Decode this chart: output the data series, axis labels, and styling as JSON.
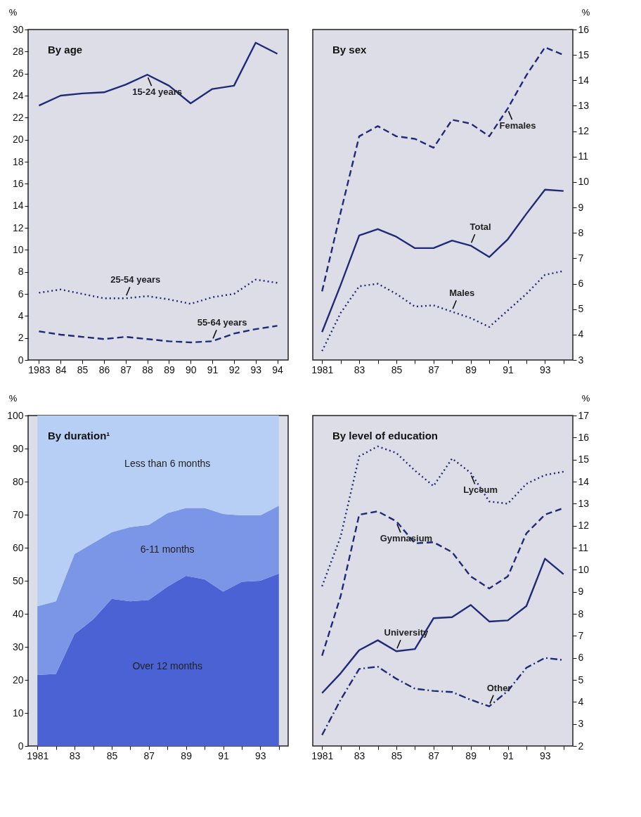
{
  "chart_data": [
    {
      "type": "line",
      "title": "By age",
      "ylabel": "%",
      "categories": [
        "1983",
        "84",
        "85",
        "86",
        "87",
        "88",
        "89",
        "90",
        "91",
        "92",
        "93",
        "94"
      ],
      "ylim": [
        0,
        30
      ],
      "yticks": [
        0,
        2,
        4,
        6,
        8,
        10,
        12,
        14,
        16,
        18,
        20,
        22,
        24,
        26,
        28,
        30
      ],
      "grid": false,
      "series": [
        {
          "name": "15-24 years",
          "color": "#1f2a78",
          "line_style": "solid",
          "values": [
            23.1,
            24.0,
            24.2,
            24.3,
            25.0,
            25.9,
            24.9,
            23.3,
            24.6,
            24.9,
            28.8,
            27.8
          ]
        },
        {
          "name": "25-54 years",
          "color": "#1f2a78",
          "line_style": "dotted",
          "values": [
            6.1,
            6.4,
            6.0,
            5.6,
            5.6,
            5.8,
            5.5,
            5.1,
            5.7,
            6.0,
            7.3,
            7.0
          ]
        },
        {
          "name": "55-64 years",
          "color": "#1f2a78",
          "line_style": "dashed",
          "values": [
            2.6,
            2.3,
            2.1,
            1.9,
            2.1,
            1.9,
            1.7,
            1.6,
            1.7,
            2.4,
            2.8,
            3.1
          ]
        }
      ]
    },
    {
      "type": "line",
      "title": "By sex",
      "y2label": "%",
      "x": [
        1981,
        1982,
        1983,
        1984,
        1985,
        1986,
        1987,
        1988,
        1989,
        1990,
        1991,
        1992,
        1993,
        1994
      ],
      "xlim": [
        1980.5,
        1994.5
      ],
      "xticks": [
        1981,
        {
          "value": 1982,
          "label": null
        },
        {
          "value": 1983,
          "label": "83"
        },
        {
          "value": 1984,
          "label": null
        },
        {
          "value": 1985,
          "label": "85"
        },
        {
          "value": 1986,
          "label": null
        },
        {
          "value": 1987,
          "label": "87"
        },
        {
          "value": 1988,
          "label": null
        },
        {
          "value": 1989,
          "label": "89"
        },
        {
          "value": 1990,
          "label": null
        },
        {
          "value": 1991,
          "label": "91"
        },
        {
          "value": 1992,
          "label": null
        },
        {
          "value": 1993,
          "label": "93"
        },
        {
          "value": 1994,
          "label": null
        }
      ],
      "y2lim": [
        3,
        16
      ],
      "y2ticks": [
        3,
        4,
        5,
        6,
        7,
        8,
        9,
        10,
        11,
        12,
        13,
        14,
        15,
        16
      ],
      "grid": false,
      "series": [
        {
          "name": "Females",
          "axis": "y2",
          "color": "#1f2a78",
          "line_style": "dashed",
          "values": [
            5.7,
            8.8,
            11.8,
            12.2,
            11.8,
            11.7,
            11.35,
            12.45,
            12.3,
            11.8,
            12.9,
            14.2,
            15.3,
            15.0
          ]
        },
        {
          "name": "Total",
          "axis": "y2",
          "color": "#1f2a78",
          "line_style": "solid",
          "values": [
            4.1,
            5.95,
            7.9,
            8.15,
            7.85,
            7.4,
            7.4,
            7.7,
            7.5,
            7.05,
            7.75,
            8.75,
            9.7,
            9.65
          ]
        },
        {
          "name": "Males",
          "axis": "y2",
          "color": "#1f2a78",
          "line_style": "dotted",
          "values": [
            3.35,
            4.85,
            5.9,
            6.0,
            5.6,
            5.1,
            5.15,
            4.9,
            4.65,
            4.3,
            4.95,
            5.6,
            6.35,
            6.5
          ]
        }
      ]
    },
    {
      "type": "area",
      "title": "By duration¹",
      "ylabel": "%",
      "stacked": true,
      "x": [
        1981,
        1982,
        1983,
        1984,
        1985,
        1986,
        1987,
        1988,
        1989,
        1990,
        1991,
        1992,
        1993,
        1994
      ],
      "xlim": [
        1980.5,
        1994.5
      ],
      "xticks": [
        1981,
        {
          "value": 1982,
          "label": null
        },
        {
          "value": 1983,
          "label": "83"
        },
        {
          "value": 1984,
          "label": null
        },
        {
          "value": 1985,
          "label": "85"
        },
        {
          "value": 1986,
          "label": null
        },
        {
          "value": 1987,
          "label": "87"
        },
        {
          "value": 1988,
          "label": null
        },
        {
          "value": 1989,
          "label": "89"
        },
        {
          "value": 1990,
          "label": null
        },
        {
          "value": 1991,
          "label": "91"
        },
        {
          "value": 1992,
          "label": null
        },
        {
          "value": 1993,
          "label": "93"
        },
        {
          "value": 1994,
          "label": null
        }
      ],
      "ylim": [
        0,
        100
      ],
      "yticks": [
        0,
        10,
        20,
        30,
        40,
        50,
        60,
        70,
        80,
        90,
        100
      ],
      "grid": false,
      "series": [
        {
          "name": "Over 12 months",
          "color": "#4a62d4",
          "values": [
            21.5,
            21.8,
            33.9,
            38.3,
            44.5,
            43.8,
            44.2,
            48.2,
            51.5,
            50.4,
            46.7,
            49.7,
            50.0,
            52.2
          ]
        },
        {
          "name": "6-11 months",
          "color": "#7b96e6",
          "values": [
            20.8,
            22.0,
            24.2,
            23.1,
            20.2,
            22.4,
            22.7,
            22.3,
            20.5,
            21.6,
            23.5,
            20.1,
            19.8,
            20.5
          ]
        },
        {
          "name": "Less than 6 months",
          "color": "#b8cff5",
          "values": [
            57.7,
            56.2,
            41.9,
            38.6,
            35.3,
            33.8,
            33.1,
            29.5,
            28.0,
            28.0,
            29.8,
            30.2,
            30.2,
            27.3
          ]
        }
      ]
    },
    {
      "type": "line",
      "title": "By level of education",
      "y2label": "%",
      "x": [
        1981,
        1982,
        1983,
        1984,
        1985,
        1986,
        1987,
        1988,
        1989,
        1990,
        1991,
        1992,
        1993,
        1994
      ],
      "xlim": [
        1980.5,
        1994.5
      ],
      "xticks": [
        1981,
        {
          "value": 1982,
          "label": null
        },
        {
          "value": 1983,
          "label": "83"
        },
        {
          "value": 1984,
          "label": null
        },
        {
          "value": 1985,
          "label": "85"
        },
        {
          "value": 1986,
          "label": null
        },
        {
          "value": 1987,
          "label": "87"
        },
        {
          "value": 1988,
          "label": null
        },
        {
          "value": 1989,
          "label": "89"
        },
        {
          "value": 1990,
          "label": null
        },
        {
          "value": 1991,
          "label": "91"
        },
        {
          "value": 1992,
          "label": null
        },
        {
          "value": 1993,
          "label": "93"
        },
        {
          "value": 1994,
          "label": null
        }
      ],
      "y2lim": [
        2,
        17
      ],
      "y2ticks": [
        2,
        3,
        4,
        5,
        6,
        7,
        8,
        9,
        10,
        11,
        12,
        13,
        14,
        15,
        16,
        17
      ],
      "grid": false,
      "series": [
        {
          "name": "Lyceum",
          "axis": "y2",
          "color": "#1f2a78",
          "line_style": "dotted",
          "values": [
            9.25,
            11.5,
            15.15,
            15.6,
            15.3,
            14.5,
            13.8,
            15.05,
            14.4,
            13.1,
            13.0,
            13.9,
            14.3,
            14.45
          ]
        },
        {
          "name": "Gymnasium",
          "axis": "y2",
          "color": "#1f2a78",
          "line_style": "dashed",
          "values": [
            6.1,
            8.8,
            12.5,
            12.65,
            12.2,
            11.2,
            11.25,
            10.8,
            9.7,
            9.15,
            9.7,
            11.65,
            12.5,
            12.8
          ]
        },
        {
          "name": "University",
          "axis": "y2",
          "color": "#1f2a78",
          "line_style": "solid",
          "values": [
            4.4,
            5.3,
            6.35,
            6.8,
            6.3,
            6.4,
            7.8,
            7.85,
            8.4,
            7.65,
            7.7,
            8.35,
            10.5,
            9.8
          ]
        },
        {
          "name": "Other",
          "axis": "y2",
          "color": "#1f2a78",
          "line_style": "dashdot",
          "values": [
            2.5,
            4.1,
            5.5,
            5.6,
            5.05,
            4.6,
            4.5,
            4.45,
            4.1,
            3.8,
            4.5,
            5.55,
            6.0,
            5.9
          ]
        }
      ]
    }
  ]
}
